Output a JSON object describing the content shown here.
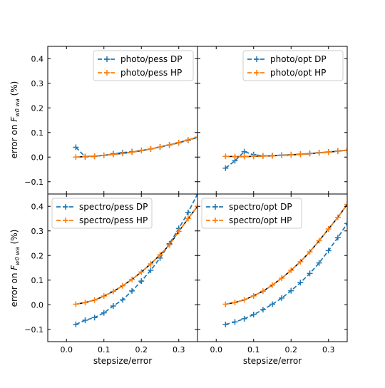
{
  "figure": {
    "ylabel_prefix": "error on ",
    "ylabel_symbol": "F",
    "ylabel_subscript": "w0 wa",
    "ylabel_suffix": " (%)",
    "xlabel": "stepsize/error"
  },
  "colors": {
    "DP": "#1f77b4",
    "HP": "#ff7f0e",
    "fit": "#000000"
  },
  "chart_data": [
    {
      "type": "line",
      "panel": "top-left",
      "legend_position": "top-right",
      "xlim": [
        -0.05,
        0.35
      ],
      "ylim": [
        -0.15,
        0.45
      ],
      "xticks": [
        0.0,
        0.1,
        0.2,
        0.3
      ],
      "xtick_labels": [
        "0.0",
        "0.1",
        "0.2",
        "0.3"
      ],
      "yticks": [
        -0.1,
        0.0,
        0.1,
        0.2,
        0.3,
        0.4
      ],
      "ytick_labels": [
        "−0.1",
        "0.0",
        "0.1",
        "0.2",
        "0.3",
        "0.4"
      ],
      "show_xticklabels": false,
      "show_yticklabels": true,
      "x": [
        0.025,
        0.05,
        0.075,
        0.1,
        0.125,
        0.15,
        0.175,
        0.2,
        0.225,
        0.25,
        0.275,
        0.3,
        0.325,
        0.35
      ],
      "series": [
        {
          "name": "photo/pess DP",
          "key": "DP",
          "values": [
            0.04,
            0.001,
            0.003,
            0.007,
            0.014,
            0.018,
            0.022,
            0.027,
            0.033,
            0.041,
            0.049,
            0.058,
            0.068,
            0.08
          ]
        },
        {
          "name": "photo/pess HP",
          "key": "HP",
          "values": [
            0.0,
            0.002,
            0.004,
            0.007,
            0.011,
            0.015,
            0.02,
            0.026,
            0.033,
            0.041,
            0.05,
            0.059,
            0.07,
            0.081
          ]
        }
      ]
    },
    {
      "type": "line",
      "panel": "top-right",
      "legend_position": "top-right",
      "xlim": [
        -0.05,
        0.35
      ],
      "ylim": [
        -0.15,
        0.45
      ],
      "xticks": [
        0.0,
        0.1,
        0.2,
        0.3
      ],
      "xtick_labels": [
        "0.0",
        "0.1",
        "0.2",
        "0.3"
      ],
      "yticks": [
        -0.1,
        0.0,
        0.1,
        0.2,
        0.3,
        0.4
      ],
      "ytick_labels": [
        "−0.1",
        "0.0",
        "0.1",
        "0.2",
        "0.3",
        "0.4"
      ],
      "show_xticklabels": false,
      "show_yticklabels": false,
      "x": [
        0.025,
        0.05,
        0.075,
        0.1,
        0.125,
        0.15,
        0.175,
        0.2,
        0.225,
        0.25,
        0.275,
        0.3,
        0.325,
        0.35
      ],
      "series": [
        {
          "name": "photo/opt DP",
          "key": "DP",
          "values": [
            -0.045,
            -0.015,
            0.022,
            0.01,
            0.005,
            0.006,
            0.008,
            0.01,
            0.012,
            0.015,
            0.018,
            0.021,
            0.025,
            0.028
          ]
        },
        {
          "name": "photo/opt HP",
          "key": "HP",
          "values": [
            0.003,
            0.002,
            0.002,
            0.003,
            0.004,
            0.005,
            0.007,
            0.009,
            0.011,
            0.014,
            0.017,
            0.02,
            0.024,
            0.028
          ]
        }
      ]
    },
    {
      "type": "line",
      "panel": "bottom-left",
      "legend_position": "top-left",
      "xlim": [
        -0.05,
        0.35
      ],
      "ylim": [
        -0.15,
        0.45
      ],
      "xticks": [
        0.0,
        0.1,
        0.2,
        0.3
      ],
      "xtick_labels": [
        "0.0",
        "0.1",
        "0.2",
        "0.3"
      ],
      "yticks": [
        -0.1,
        0.0,
        0.1,
        0.2,
        0.3,
        0.4
      ],
      "ytick_labels": [
        "−0.1",
        "0.0",
        "0.1",
        "0.2",
        "0.3",
        "0.4"
      ],
      "show_xticklabels": true,
      "show_yticklabels": true,
      "x": [
        0.025,
        0.05,
        0.075,
        0.1,
        0.125,
        0.15,
        0.175,
        0.2,
        0.225,
        0.25,
        0.275,
        0.3,
        0.325,
        0.35
      ],
      "series": [
        {
          "name": "spectro/pess DP",
          "key": "DP",
          "values": [
            -0.08,
            -0.063,
            -0.052,
            -0.033,
            -0.005,
            0.02,
            0.056,
            0.096,
            0.14,
            0.19,
            0.248,
            0.31,
            0.375,
            0.45
          ]
        },
        {
          "name": "spectro/pess HP",
          "key": "HP",
          "values": [
            0.002,
            0.009,
            0.019,
            0.035,
            0.054,
            0.077,
            0.103,
            0.133,
            0.166,
            0.203,
            0.243,
            0.298,
            0.35,
            0.4
          ]
        }
      ]
    },
    {
      "type": "line",
      "panel": "bottom-right",
      "legend_position": "top-left",
      "xlim": [
        -0.05,
        0.35
      ],
      "ylim": [
        -0.15,
        0.45
      ],
      "xticks": [
        0.0,
        0.1,
        0.2,
        0.3
      ],
      "xtick_labels": [
        "0.0",
        "0.1",
        "0.2",
        "0.3"
      ],
      "yticks": [
        -0.1,
        0.0,
        0.1,
        0.2,
        0.3,
        0.4
      ],
      "ytick_labels": [
        "−0.1",
        "0.0",
        "0.1",
        "0.2",
        "0.3",
        "0.4"
      ],
      "show_xticklabels": true,
      "show_yticklabels": false,
      "x": [
        0.025,
        0.05,
        0.075,
        0.1,
        0.125,
        0.15,
        0.175,
        0.2,
        0.225,
        0.25,
        0.275,
        0.3,
        0.325,
        0.35
      ],
      "series": [
        {
          "name": "spectro/opt DP",
          "key": "DP",
          "values": [
            -0.08,
            -0.07,
            -0.057,
            -0.04,
            -0.02,
            0.002,
            0.027,
            0.057,
            0.09,
            0.127,
            0.17,
            0.22,
            0.273,
            0.33
          ]
        },
        {
          "name": "spectro/opt HP",
          "key": "HP",
          "values": [
            0.002,
            0.009,
            0.02,
            0.036,
            0.055,
            0.08,
            0.108,
            0.14,
            0.175,
            0.215,
            0.26,
            0.308,
            0.355,
            0.408
          ]
        }
      ]
    }
  ]
}
